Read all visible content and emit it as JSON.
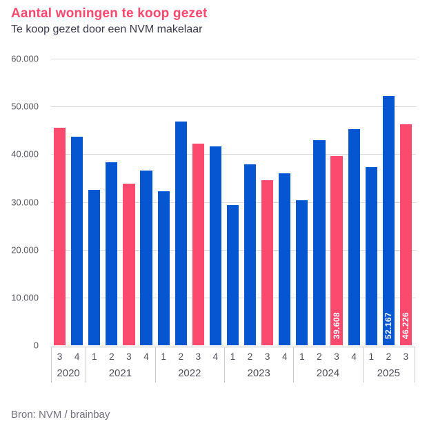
{
  "header": {
    "title": "Aantal woningen te koop gezet",
    "subtitle": "Te koop gezet door een NVM makelaar"
  },
  "footer": {
    "source": "Bron: NVM / brainbay"
  },
  "colors": {
    "title_pink": "#fb486e",
    "bar_blue": "#0556d0",
    "bar_pink": "#fc4a6e",
    "grid": "#dadada",
    "axis_line": "#cbcbcb",
    "bar_value_label": "#ffffff"
  },
  "chart_data": {
    "type": "bar",
    "title": "Aantal woningen te koop gezet",
    "subtitle": "Te koop gezet door een NVM makelaar",
    "source": "Bron: NVM / brainbay",
    "ylim": [
      0,
      60000
    ],
    "grid": true,
    "legend": false,
    "highlight_note": "Q3 bars highlighted in pink, other quarters blue",
    "yticks": [
      {
        "value": 60000,
        "label": "60.000"
      },
      {
        "value": 50000,
        "label": "50.000"
      },
      {
        "value": 40000,
        "label": "40.000"
      },
      {
        "value": 30000,
        "label": "30.000"
      },
      {
        "value": 20000,
        "label": "20.000"
      },
      {
        "value": 10000,
        "label": "10.000"
      },
      {
        "value": 0,
        "label": "0"
      }
    ],
    "groups": [
      {
        "year": "2020",
        "bars": [
          {
            "quarter": "3",
            "value": 45600,
            "highlight": true
          },
          {
            "quarter": "4",
            "value": 43600,
            "highlight": false
          }
        ]
      },
      {
        "year": "2021",
        "bars": [
          {
            "quarter": "1",
            "value": 32600,
            "highlight": false
          },
          {
            "quarter": "2",
            "value": 38300,
            "highlight": false
          },
          {
            "quarter": "3",
            "value": 33900,
            "highlight": true
          },
          {
            "quarter": "4",
            "value": 36600,
            "highlight": false
          }
        ]
      },
      {
        "year": "2022",
        "bars": [
          {
            "quarter": "1",
            "value": 32300,
            "highlight": false
          },
          {
            "quarter": "2",
            "value": 46900,
            "highlight": false
          },
          {
            "quarter": "3",
            "value": 42200,
            "highlight": true
          },
          {
            "quarter": "4",
            "value": 41700,
            "highlight": false
          }
        ]
      },
      {
        "year": "2023",
        "bars": [
          {
            "quarter": "1",
            "value": 29300,
            "highlight": false
          },
          {
            "quarter": "2",
            "value": 37900,
            "highlight": false
          },
          {
            "quarter": "3",
            "value": 34600,
            "highlight": true
          },
          {
            "quarter": "4",
            "value": 36000,
            "highlight": false
          }
        ]
      },
      {
        "year": "2024",
        "bars": [
          {
            "quarter": "1",
            "value": 30400,
            "highlight": false
          },
          {
            "quarter": "2",
            "value": 43000,
            "highlight": false
          },
          {
            "quarter": "3",
            "value": 39608,
            "highlight": true,
            "label": "39.608"
          },
          {
            "quarter": "4",
            "value": 45200,
            "highlight": false
          }
        ]
      },
      {
        "year": "2025",
        "bars": [
          {
            "quarter": "1",
            "value": 37300,
            "highlight": false
          },
          {
            "quarter": "2",
            "value": 52167,
            "highlight": false,
            "label": "52.167"
          },
          {
            "quarter": "3",
            "value": 46226,
            "highlight": true,
            "label": "46.226"
          }
        ]
      }
    ]
  }
}
